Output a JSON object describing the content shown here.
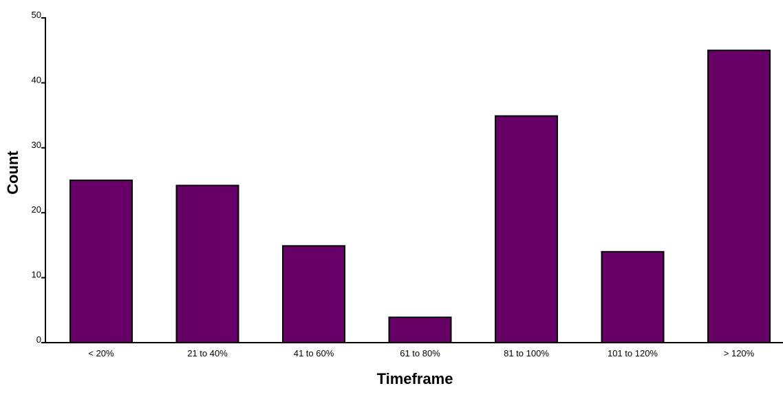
{
  "chart_data": {
    "type": "bar",
    "categories": [
      "< 20%",
      "21 to 40%",
      "41 to 60%",
      "61 to 80%",
      "81 to 100%",
      "101 to 120%",
      "> 120%"
    ],
    "values": [
      25,
      24.2,
      14.9,
      3.9,
      34.9,
      14,
      45
    ],
    "xlabel": "Timeframe",
    "ylabel": "Count",
    "ylim": [
      0,
      50
    ],
    "yticks": [
      0,
      10,
      20,
      30,
      40,
      50
    ],
    "grid": false,
    "bar_color": "#660066",
    "bar_edge_color": "#000000"
  }
}
